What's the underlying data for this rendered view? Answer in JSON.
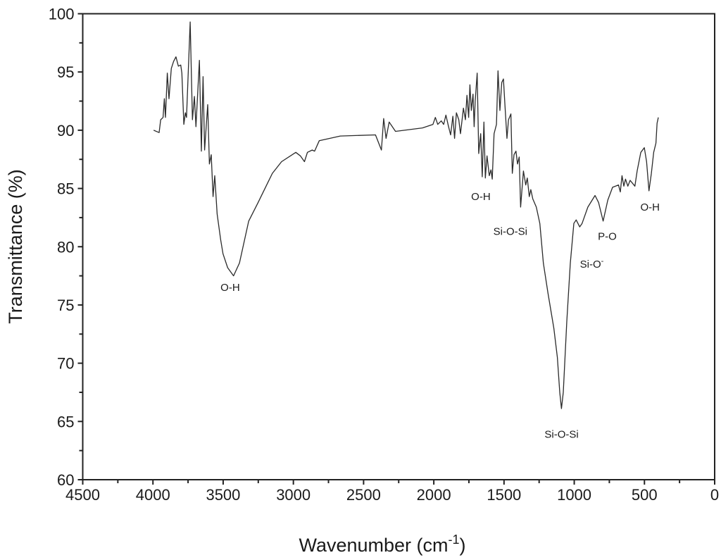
{
  "chart_data": {
    "type": "line",
    "title": "",
    "xlabel": "Wavenumber (cm",
    "xlabel_superscript": "-1",
    "xlabel_suffix": ")",
    "ylabel": "Transmittance (%)",
    "xlim": [
      4500,
      0
    ],
    "ylim": [
      60,
      100
    ],
    "x_reversed": true,
    "x_ticks": [
      4500,
      4000,
      3500,
      3000,
      2500,
      2000,
      1500,
      1000,
      500,
      0
    ],
    "y_ticks": [
      60,
      65,
      70,
      75,
      80,
      85,
      90,
      95,
      100
    ],
    "grid": false,
    "line_color": "#2a2a2a",
    "series": [
      {
        "x": [
          3995,
          3956,
          3945,
          3928,
          3919,
          3911,
          3898,
          3886,
          3869,
          3853,
          3836,
          3819,
          3802,
          3794,
          3780,
          3769,
          3761,
          3735,
          3719,
          3705,
          3694,
          3669,
          3655,
          3643,
          3632,
          3610,
          3598,
          3585,
          3572,
          3560,
          3543,
          3518,
          3501,
          3468,
          3426,
          3384,
          3318,
          3251,
          3150,
          3084,
          2983,
          2950,
          2921,
          2900,
          2866,
          2849,
          2816,
          2666,
          2415,
          2373,
          2357,
          2340,
          2318,
          2273,
          2081,
          2006,
          1989,
          1972,
          1947,
          1930,
          1914,
          1897,
          1880,
          1864,
          1852,
          1839,
          1822,
          1810,
          1789,
          1775,
          1764,
          1752,
          1743,
          1733,
          1721,
          1713,
          1705,
          1691,
          1680,
          1666,
          1655,
          1643,
          1633,
          1621,
          1605,
          1593,
          1584,
          1571,
          1554,
          1543,
          1529,
          1516,
          1504,
          1493,
          1479,
          1468,
          1451,
          1441,
          1429,
          1415,
          1404,
          1392,
          1382,
          1362,
          1345,
          1334,
          1320,
          1309,
          1295,
          1270,
          1245,
          1220,
          1187,
          1145,
          1120,
          1103,
          1091,
          1078,
          1053,
          1028,
          1003,
          986,
          961,
          944,
          903,
          852,
          827,
          794,
          761,
          727,
          685,
          672,
          660,
          647,
          635,
          618,
          602,
          568,
          552,
          526,
          501,
          485,
          468,
          451,
          434,
          418,
          410,
          401
        ],
        "y": [
          90.0,
          89.8,
          90.9,
          91.1,
          92.7,
          91.1,
          94.9,
          92.7,
          95.3,
          95.9,
          96.3,
          95.5,
          95.6,
          94.9,
          90.5,
          91.5,
          91.1,
          99.3,
          90.9,
          92.9,
          90.3,
          96.0,
          88.2,
          94.6,
          88.3,
          92.2,
          87.1,
          87.9,
          84.3,
          86.1,
          82.8,
          80.6,
          79.4,
          78.2,
          77.5,
          78.6,
          82.2,
          83.8,
          86.3,
          87.3,
          88.1,
          87.8,
          87.3,
          88.1,
          88.3,
          88.2,
          89.1,
          89.5,
          89.6,
          88.3,
          91.0,
          89.3,
          90.7,
          89.9,
          90.2,
          90.5,
          91.1,
          90.5,
          90.8,
          90.5,
          91.3,
          90.4,
          89.6,
          91.2,
          89.3,
          91.5,
          90.9,
          89.7,
          91.9,
          90.9,
          93.0,
          91.1,
          93.9,
          91.7,
          93.1,
          90.3,
          92.5,
          94.9,
          88.0,
          89.7,
          86.0,
          90.7,
          85.9,
          87.8,
          86.1,
          86.6,
          85.8,
          89.7,
          90.5,
          95.1,
          91.7,
          94.1,
          94.4,
          92.1,
          89.3,
          90.9,
          91.4,
          86.3,
          87.9,
          88.2,
          87.1,
          87.7,
          83.4,
          86.5,
          85.3,
          85.9,
          84.3,
          84.9,
          84.1,
          83.4,
          82.0,
          78.6,
          76.0,
          73.0,
          70.5,
          67.5,
          66.1,
          67.5,
          73.6,
          78.6,
          82.0,
          82.3,
          81.7,
          82.0,
          83.4,
          84.4,
          83.8,
          82.2,
          84.0,
          85.1,
          85.3,
          84.7,
          86.1,
          85.2,
          85.8,
          85.2,
          85.7,
          85.2,
          86.5,
          88.1,
          88.5,
          87.3,
          84.8,
          86.3,
          88.1,
          88.9,
          90.6,
          91.1
        ]
      }
    ],
    "annotations": [
      {
        "text": "O-H",
        "x": 3450,
        "y": 76.2
      },
      {
        "text": "O-H",
        "x": 1665,
        "y": 84.0
      },
      {
        "text": "Si-O-Si",
        "x": 1455,
        "y": 81.0
      },
      {
        "text": "Si-O-Si",
        "x": 1090,
        "y": 63.6
      },
      {
        "text": "Si-O",
        "sup": "-",
        "x": 875,
        "y": 78.2
      },
      {
        "text": "P-O",
        "x": 765,
        "y": 80.6
      },
      {
        "text": "O-H",
        "x": 460,
        "y": 83.1
      }
    ]
  }
}
